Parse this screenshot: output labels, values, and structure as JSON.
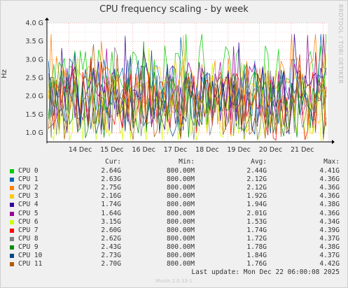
{
  "chart_data": {
    "type": "line",
    "title": "CPU frequency scaling - by week",
    "ylabel": "Hz",
    "ylim": [
      0.75,
      4.0
    ],
    "yticks": [
      {
        "value": 1.0,
        "label": "1.0 G"
      },
      {
        "value": 1.5,
        "label": "1.5 G"
      },
      {
        "value": 2.0,
        "label": "2.0 G"
      },
      {
        "value": 2.5,
        "label": "2.5 G"
      },
      {
        "value": 3.0,
        "label": "3.0 G"
      },
      {
        "value": 3.5,
        "label": "3.5 G"
      },
      {
        "value": 4.0,
        "label": "4.0 G"
      }
    ],
    "xlim": [
      13.3,
      22.15
    ],
    "xticks": [
      {
        "value": 14,
        "label": "14 Dec"
      },
      {
        "value": 15,
        "label": "15 Dec"
      },
      {
        "value": 16,
        "label": "16 Dec"
      },
      {
        "value": 17,
        "label": "17 Dec"
      },
      {
        "value": 18,
        "label": "18 Dec"
      },
      {
        "value": 19,
        "label": "19 Dec"
      },
      {
        "value": 20,
        "label": "20 Dec"
      },
      {
        "value": 21,
        "label": "21 Dec"
      }
    ],
    "grid": true,
    "series": [
      {
        "name": "CPU 0",
        "color": "#00cc00",
        "cur": "2.64G",
        "min": "800.00M",
        "avg": "2.44G",
        "max": "4.41G",
        "avgv": 2.44,
        "maxv": 4.41
      },
      {
        "name": "CPU 1",
        "color": "#0066b3",
        "cur": "2.63G",
        "min": "800.00M",
        "avg": "2.12G",
        "max": "4.36G",
        "avgv": 2.12,
        "maxv": 4.36
      },
      {
        "name": "CPU 2",
        "color": "#ff8000",
        "cur": "2.75G",
        "min": "800.00M",
        "avg": "2.12G",
        "max": "4.36G",
        "avgv": 2.12,
        "maxv": 4.36
      },
      {
        "name": "CPU 3",
        "color": "#ffcc00",
        "cur": "2.16G",
        "min": "800.00M",
        "avg": "1.92G",
        "max": "4.36G",
        "avgv": 1.92,
        "maxv": 4.36
      },
      {
        "name": "CPU 4",
        "color": "#330099",
        "cur": "1.74G",
        "min": "800.00M",
        "avg": "1.94G",
        "max": "4.38G",
        "avgv": 1.94,
        "maxv": 4.38
      },
      {
        "name": "CPU 5",
        "color": "#990099",
        "cur": "1.64G",
        "min": "800.00M",
        "avg": "2.01G",
        "max": "4.36G",
        "avgv": 2.01,
        "maxv": 4.36
      },
      {
        "name": "CPU 6",
        "color": "#ccff00",
        "cur": "3.15G",
        "min": "800.00M",
        "avg": "1.53G",
        "max": "4.34G",
        "avgv": 1.53,
        "maxv": 4.34
      },
      {
        "name": "CPU 7",
        "color": "#ff0000",
        "cur": "2.60G",
        "min": "800.00M",
        "avg": "1.74G",
        "max": "4.39G",
        "avgv": 1.74,
        "maxv": 4.39
      },
      {
        "name": "CPU 8",
        "color": "#808080",
        "cur": "2.62G",
        "min": "800.00M",
        "avg": "1.72G",
        "max": "4.37G",
        "avgv": 1.72,
        "maxv": 4.37
      },
      {
        "name": "CPU 9",
        "color": "#008f00",
        "cur": "2.43G",
        "min": "800.00M",
        "avg": "1.78G",
        "max": "4.38G",
        "avgv": 1.78,
        "maxv": 4.38
      },
      {
        "name": "CPU 10",
        "color": "#00487d",
        "cur": "2.73G",
        "min": "800.00M",
        "avg": "1.84G",
        "max": "4.37G",
        "avgv": 1.84,
        "maxv": 4.37
      },
      {
        "name": "CPU 11",
        "color": "#b35a00",
        "cur": "2.70G",
        "min": "800.00M",
        "avg": "1.76G",
        "max": "4.42G",
        "avgv": 1.76,
        "maxv": 4.42
      }
    ]
  },
  "legend_headers": {
    "cur": "Cur:",
    "min": "Min:",
    "avg": "Avg:",
    "max": "Max:"
  },
  "last_update": "Last update:  Mon Dec 22 06:00:08 2025",
  "watermark": "RRDTOOL / TOBI OETIKER",
  "footer": "Munin 2.0.33-1",
  "colors": {
    "background": "#f0f0f0",
    "plot_background": "#ffffff",
    "grid": "#ff9999",
    "axis": "#000000"
  }
}
